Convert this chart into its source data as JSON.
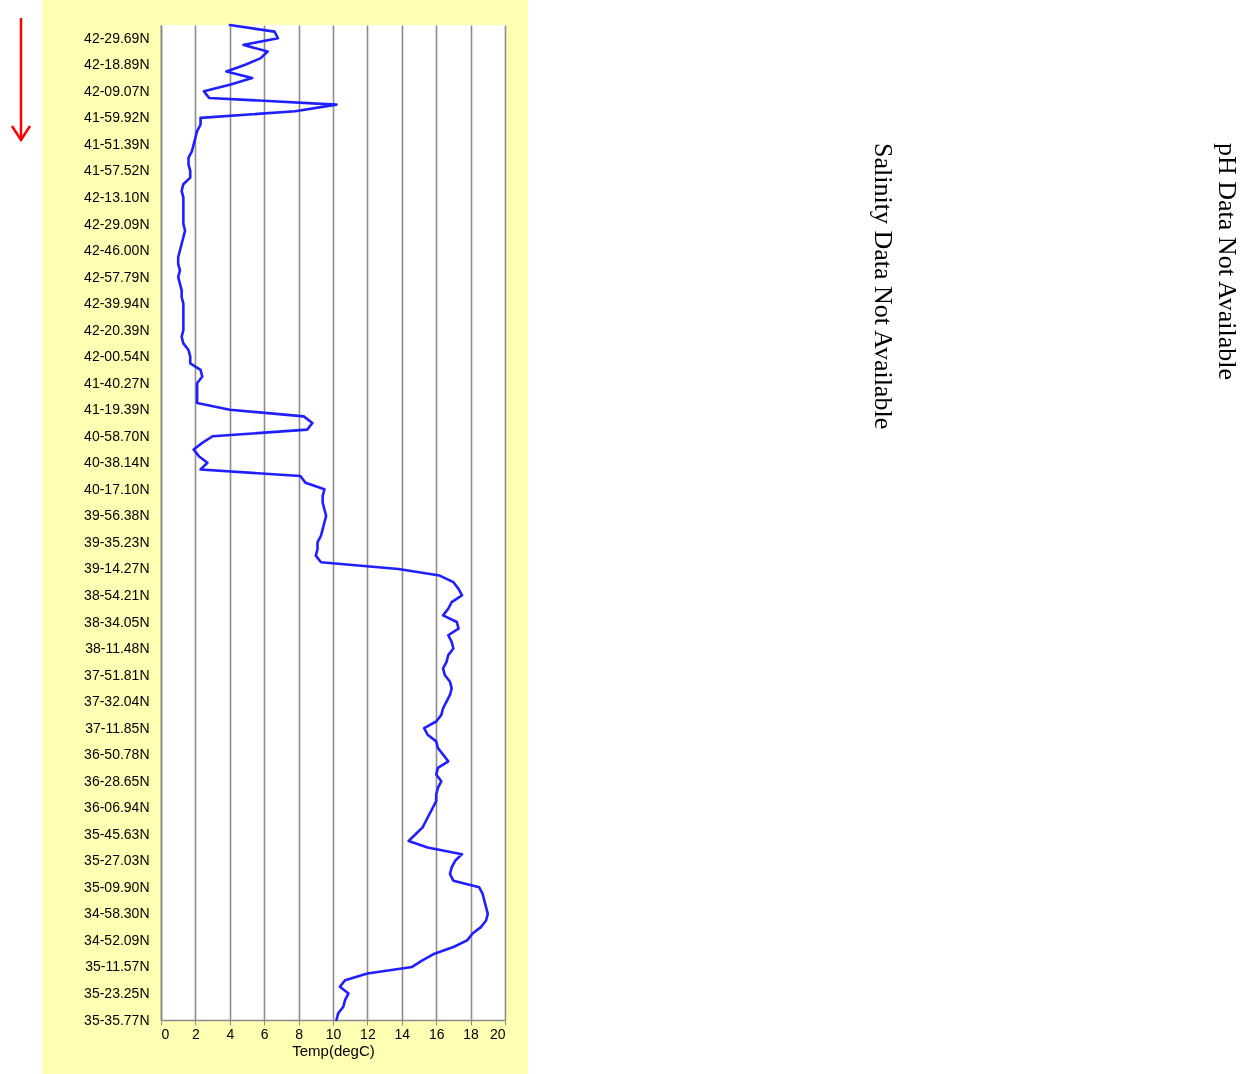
{
  "chart_data": {
    "type": "line",
    "orientation": "horizontal",
    "xlabel": "Temp(degC)",
    "grid": "x",
    "xlim": [
      0,
      20
    ],
    "xticks": [
      0,
      2,
      4,
      6,
      8,
      10,
      12,
      14,
      16,
      18,
      20
    ],
    "annotations": [
      "Salinity Data Not Available",
      "pH Data Not Available"
    ],
    "categories": [
      null,
      null,
      "42-29.69N",
      null,
      null,
      null,
      "42-18.89N",
      null,
      null,
      null,
      "42-09.07N",
      null,
      null,
      null,
      "41-59.92N",
      null,
      null,
      null,
      "41-51.39N",
      null,
      null,
      null,
      "41-57.52N",
      null,
      null,
      null,
      "42-13.10N",
      null,
      null,
      null,
      "42-29.09N",
      null,
      null,
      null,
      "42-46.00N",
      null,
      null,
      null,
      "42-57.79N",
      null,
      null,
      null,
      "42-39.94N",
      null,
      null,
      null,
      "42-20.39N",
      null,
      null,
      null,
      "42-00.54N",
      null,
      null,
      null,
      "41-40.27N",
      null,
      null,
      null,
      "41-19.39N",
      null,
      null,
      null,
      "40-58.70N",
      null,
      null,
      null,
      "40-38.14N",
      null,
      null,
      null,
      "40-17.10N",
      null,
      null,
      null,
      "39-56.38N",
      null,
      null,
      null,
      "39-35.23N",
      null,
      null,
      null,
      "39-14.27N",
      null,
      null,
      null,
      "38-54.21N",
      null,
      null,
      null,
      "38-34.05N",
      null,
      null,
      null,
      "38-11.48N",
      null,
      null,
      null,
      "37-51.81N",
      null,
      null,
      null,
      "37-32.04N",
      null,
      null,
      null,
      "37-11.85N",
      null,
      null,
      null,
      "36-50.78N",
      null,
      null,
      null,
      "36-28.65N",
      null,
      null,
      null,
      "36-06.94N",
      null,
      null,
      null,
      "35-45.63N",
      null,
      null,
      null,
      "35-27.03N",
      null,
      null,
      null,
      "35-09.90N",
      null,
      null,
      null,
      "34-58.30N",
      null,
      null,
      null,
      "34-52.09N",
      null,
      null,
      null,
      "35-11.57N",
      null,
      null,
      null,
      "35-23.25N",
      null,
      null,
      null,
      "35-35.77N"
    ],
    "series": [
      {
        "color": "#1f1fff",
        "values": [
          4.0,
          6.6,
          6.8,
          4.8,
          6.2,
          5.8,
          4.9,
          3.8,
          5.3,
          4.0,
          2.5,
          2.8,
          10.2,
          7.8,
          2.3,
          2.3,
          2.1,
          2.0,
          1.9,
          1.8,
          1.6,
          1.6,
          1.7,
          1.7,
          1.3,
          1.2,
          1.3,
          1.3,
          1.3,
          1.3,
          1.3,
          1.4,
          1.3,
          1.2,
          1.1,
          1.0,
          1.0,
          1.1,
          1.0,
          1.1,
          1.2,
          1.2,
          1.3,
          1.3,
          1.3,
          1.3,
          1.3,
          1.2,
          1.3,
          1.6,
          1.7,
          1.7,
          2.3,
          2.4,
          2.1,
          2.1,
          2.1,
          2.1,
          4.0,
          8.3,
          8.8,
          8.5,
          3.0,
          2.4,
          1.9,
          2.2,
          2.7,
          2.3,
          8.1,
          8.4,
          9.5,
          9.4,
          9.4,
          9.5,
          9.6,
          9.5,
          9.4,
          9.3,
          9.1,
          9.1,
          9.0,
          9.3,
          13.8,
          16.2,
          17.0,
          17.3,
          17.5,
          16.9,
          16.7,
          16.4,
          17.2,
          17.3,
          16.7,
          16.9,
          17.0,
          16.7,
          16.6,
          16.4,
          16.5,
          16.8,
          16.9,
          16.8,
          16.6,
          16.4,
          16.3,
          16.0,
          15.3,
          15.5,
          16.0,
          16.1,
          16.4,
          16.7,
          16.1,
          16.0,
          16.3,
          16.1,
          16.0,
          16.0,
          15.8,
          15.6,
          15.4,
          15.2,
          14.8,
          14.4,
          15.5,
          17.5,
          17.1,
          16.9,
          16.8,
          17.0,
          18.5,
          18.7,
          18.8,
          18.9,
          19.0,
          18.9,
          18.6,
          18.1,
          17.8,
          17.0,
          15.9,
          15.2,
          14.6,
          12.0,
          10.7,
          10.4,
          10.9,
          10.7,
          10.6,
          10.3,
          10.2
        ]
      }
    ]
  }
}
